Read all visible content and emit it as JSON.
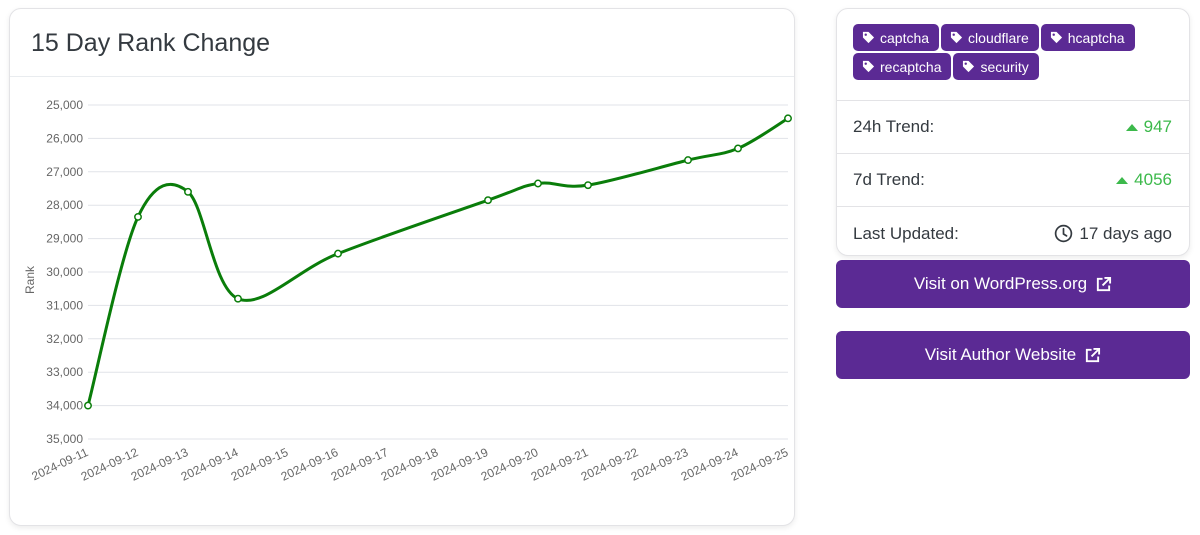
{
  "chart_card": {
    "title": "15 Day Rank Change"
  },
  "chart_data": {
    "type": "line",
    "title": "15 Day Rank Change",
    "xlabel": "",
    "ylabel": "Rank",
    "ylim": [
      25000,
      35000
    ],
    "y_reversed": true,
    "y_ticks": [
      "25,000",
      "26,000",
      "27,000",
      "28,000",
      "29,000",
      "30,000",
      "31,000",
      "32,000",
      "33,000",
      "34,000",
      "35,000"
    ],
    "categories": [
      "2024-09-11",
      "2024-09-12",
      "2024-09-13",
      "2024-09-14",
      "2024-09-15",
      "2024-09-16",
      "2024-09-17",
      "2024-09-18",
      "2024-09-19",
      "2024-09-20",
      "2024-09-21",
      "2024-09-22",
      "2024-09-23",
      "2024-09-24",
      "2024-09-25"
    ],
    "series": [
      {
        "x": [
          "2024-09-11",
          "2024-09-12",
          "2024-09-13",
          "2024-09-14",
          "2024-09-16",
          "2024-09-19",
          "2024-09-20",
          "2024-09-21",
          "2024-09-23",
          "2024-09-24",
          "2024-09-25"
        ],
        "values": [
          34000,
          28350,
          27600,
          30800,
          29450,
          27850,
          27350,
          27400,
          26650,
          26300,
          25400
        ],
        "color": "#0a7d0a"
      }
    ],
    "grid": true,
    "legend": "none"
  },
  "tags": [
    {
      "icon": "tag-icon",
      "label": "captcha"
    },
    {
      "icon": "tag-icon",
      "label": "cloudflare"
    },
    {
      "icon": "tag-icon",
      "label": "hcaptcha"
    },
    {
      "icon": "tag-icon",
      "label": "recaptcha"
    },
    {
      "icon": "tag-icon",
      "label": "security"
    }
  ],
  "stats": {
    "trend_24h_label": "24h Trend:",
    "trend_24h_value": "947",
    "trend_7d_label": "7d Trend:",
    "trend_7d_value": "4056",
    "updated_label": "Last Updated:",
    "updated_value": "17 days ago"
  },
  "buttons": {
    "wordpress": "Visit on WordPress.org",
    "author": "Visit Author Website"
  },
  "colors": {
    "accent": "#5b2a94",
    "trend_up": "#3cb94b",
    "line": "#0a7d0a"
  }
}
